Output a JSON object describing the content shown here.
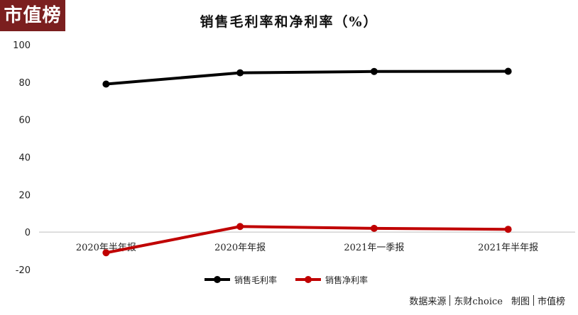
{
  "logo": "市值榜",
  "source": {
    "label": "数据来源",
    "provider": "东财choice",
    "made_by": "制图",
    "brand": "市值榜"
  },
  "chart_data": {
    "type": "line",
    "title": "销售毛利率和净利率（%）",
    "categories": [
      "2020年半年报",
      "2020年年报",
      "2021年一季报",
      "2021年半年报"
    ],
    "ylim": [
      -20,
      100
    ],
    "yticks": [
      -20,
      0,
      20,
      40,
      60,
      80,
      100
    ],
    "grid": false,
    "legend_position": "bottom",
    "series": [
      {
        "name": "销售毛利率",
        "color": "#000000",
        "values": [
          79,
          85,
          85.7,
          85.8
        ]
      },
      {
        "name": "销售净利率",
        "color": "#c00000",
        "values": [
          -11,
          3,
          2,
          1.5
        ]
      }
    ]
  }
}
